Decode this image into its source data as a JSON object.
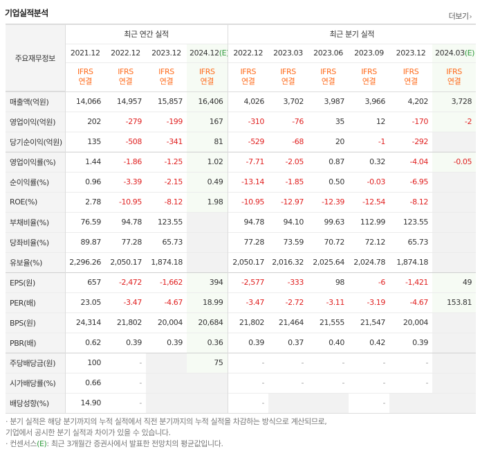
{
  "header": {
    "title": "기업실적분석",
    "more_label": "더보기",
    "more_icon": "chevron-right-icon"
  },
  "table": {
    "stub_header": "주요재무정보",
    "annual_group": "최근 연간 실적",
    "quarter_group": "최근 분기 실적",
    "periods": [
      {
        "label": "2021.12",
        "est": ""
      },
      {
        "label": "2022.12",
        "est": ""
      },
      {
        "label": "2023.12",
        "est": ""
      },
      {
        "label": "2024.12",
        "est": "(E)"
      },
      {
        "label": "2022.12",
        "est": ""
      },
      {
        "label": "2023.03",
        "est": ""
      },
      {
        "label": "2023.06",
        "est": ""
      },
      {
        "label": "2023.09",
        "est": ""
      },
      {
        "label": "2023.12",
        "est": ""
      },
      {
        "label": "2024.03",
        "est": "(E)"
      }
    ],
    "ifrs_top": "IFRS",
    "ifrs_bottom": "연결",
    "rows": [
      {
        "label": "매출액(억원)",
        "values": [
          "14,066",
          "14,957",
          "15,857",
          "16,406",
          "4,026",
          "3,702",
          "3,987",
          "3,966",
          "4,202",
          "3,728"
        ]
      },
      {
        "label": "영업이익(억원)",
        "values": [
          "202",
          "-279",
          "-199",
          "167",
          "-310",
          "-76",
          "35",
          "12",
          "-170",
          "-2"
        ]
      },
      {
        "label": "당기순이익(억원)",
        "values": [
          "135",
          "-508",
          "-341",
          "81",
          "-529",
          "-68",
          "20",
          "-1",
          "-292",
          ""
        ]
      },
      {
        "label": "영업이익률(%)",
        "values": [
          "1.44",
          "-1.86",
          "-1.25",
          "1.02",
          "-7.71",
          "-2.05",
          "0.87",
          "0.32",
          "-4.04",
          "-0.05"
        ]
      },
      {
        "label": "순이익률(%)",
        "values": [
          "0.96",
          "-3.39",
          "-2.15",
          "0.49",
          "-13.14",
          "-1.85",
          "0.50",
          "-0.03",
          "-6.95",
          ""
        ]
      },
      {
        "label": "ROE(%)",
        "values": [
          "2.78",
          "-10.95",
          "-8.12",
          "1.98",
          "-10.95",
          "-12.97",
          "-12.39",
          "-12.54",
          "-8.12",
          ""
        ]
      },
      {
        "label": "부채비율(%)",
        "values": [
          "76.59",
          "94.78",
          "123.55",
          "",
          "94.78",
          "94.10",
          "99.63",
          "112.99",
          "123.55",
          ""
        ]
      },
      {
        "label": "당좌비율(%)",
        "values": [
          "89.87",
          "77.28",
          "65.73",
          "",
          "77.28",
          "73.59",
          "70.72",
          "72.12",
          "65.73",
          ""
        ]
      },
      {
        "label": "유보율(%)",
        "values": [
          "2,296.26",
          "2,050.17",
          "1,874.18",
          "",
          "2,050.17",
          "2,016.32",
          "2,025.64",
          "2,024.78",
          "1,874.18",
          ""
        ]
      },
      {
        "label": "EPS(원)",
        "values": [
          "657",
          "-2,472",
          "-1,662",
          "394",
          "-2,577",
          "-333",
          "98",
          "-6",
          "-1,421",
          "49"
        ]
      },
      {
        "label": "PER(배)",
        "values": [
          "23.05",
          "-3.47",
          "-4.67",
          "18.99",
          "-3.47",
          "-2.72",
          "-3.11",
          "-3.19",
          "-4.67",
          "153.81"
        ]
      },
      {
        "label": "BPS(원)",
        "values": [
          "24,314",
          "21,802",
          "20,004",
          "20,684",
          "21,802",
          "21,464",
          "21,555",
          "21,547",
          "20,004",
          ""
        ]
      },
      {
        "label": "PBR(배)",
        "values": [
          "0.62",
          "0.39",
          "0.39",
          "0.36",
          "0.39",
          "0.37",
          "0.40",
          "0.42",
          "0.39",
          ""
        ]
      },
      {
        "label": "주당배당금(원)",
        "values": [
          "100",
          "-",
          "",
          "75",
          "-",
          "-",
          "-",
          "-",
          "-",
          ""
        ]
      },
      {
        "label": "시가배당률(%)",
        "values": [
          "0.66",
          "-",
          "",
          "",
          "-",
          "-",
          "-",
          "-",
          "-",
          ""
        ]
      },
      {
        "label": "배당성향(%)",
        "values": [
          "14.90",
          "-",
          "",
          "",
          "-",
          "",
          "",
          "-",
          "",
          ""
        ]
      }
    ]
  },
  "notes": {
    "line1": "· 분기 실적은 해당 분기까지의 누적 실적에서 직전 분기까지의 누적 실적을 차감하는 방식으로 계산되므로,",
    "line2": "  기업에서 공시한 분기 실적과 차이가 있을 수 있습니다.",
    "line3_prefix": "· 컨센서스",
    "line3_est": "(E)",
    "line3_rest": ": 최근 3개월간 증권사에서 발표한 전망치의 평균값입니다."
  },
  "colors": {
    "negative": "#e02020",
    "ifrs": "#ff6a1a",
    "estimate": "#2f9a3c",
    "stub_bg": "#f4f4f4"
  }
}
